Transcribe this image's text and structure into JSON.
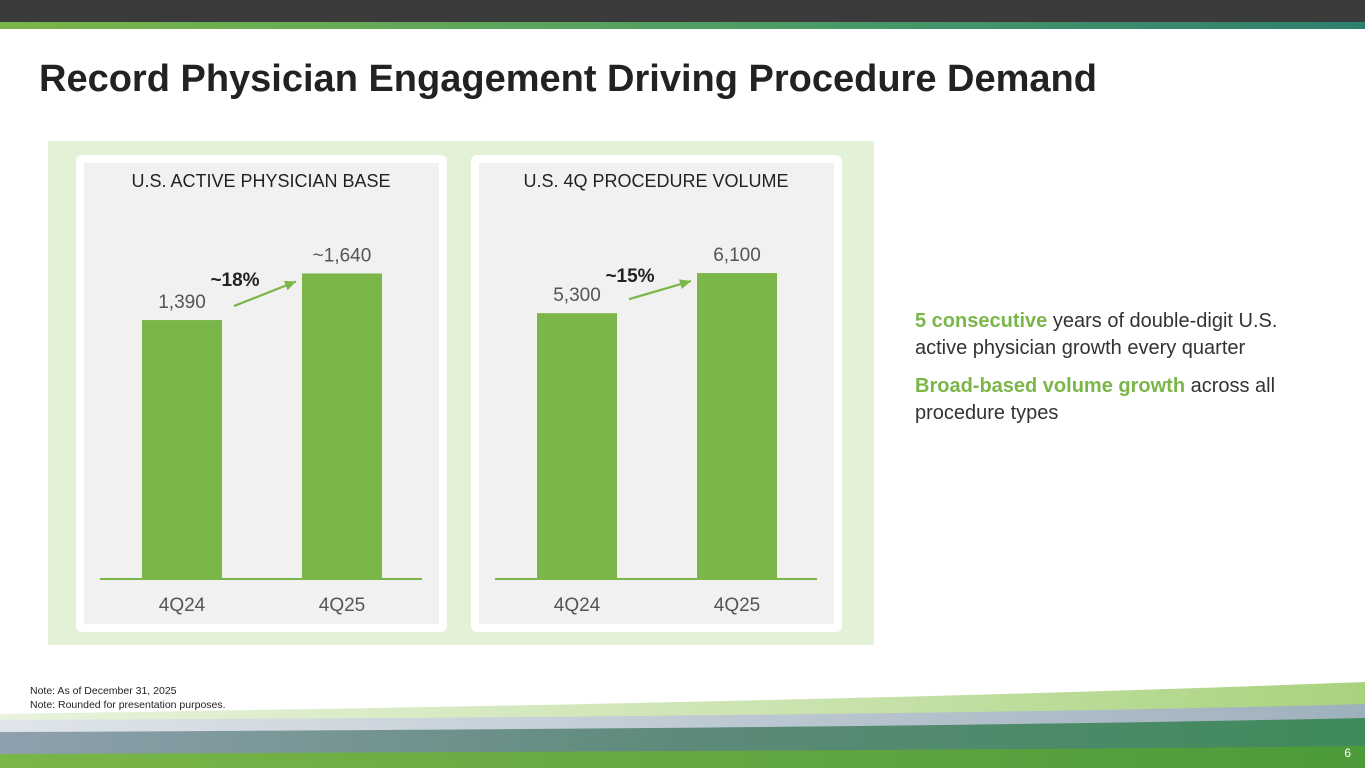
{
  "slide": {
    "title": "Record Physician Engagement Driving Procedure Demand",
    "page_number": "6"
  },
  "colors": {
    "accent_green": "#7ab648",
    "top_bar": "#3b3b3b",
    "panel_bg": "#e3f2d7"
  },
  "chart_data": [
    {
      "type": "bar",
      "title": "U.S. ACTIVE PHYSICIAN BASE",
      "categories": [
        "4Q24",
        "4Q25"
      ],
      "values": [
        1390,
        1640
      ],
      "labels": [
        "1,390",
        "~1,640"
      ],
      "growth_label": "~18%",
      "ylim": [
        0,
        1750
      ]
    },
    {
      "type": "bar",
      "title": "U.S. 4Q PROCEDURE VOLUME",
      "categories": [
        "4Q24",
        "4Q25"
      ],
      "values": [
        5300,
        6100
      ],
      "labels": [
        "5,300",
        "6,100"
      ],
      "growth_label": "~15%",
      "ylim": [
        0,
        6500
      ]
    }
  ],
  "bullets": [
    {
      "highlight": "5 consecutive",
      "text": " years of double-digit U.S. active physician growth every quarter"
    },
    {
      "highlight": "Broad-based volume growth",
      "text": " across all procedure types"
    }
  ],
  "notes": [
    "Note: As of December 31, 2025",
    "Note: Rounded for presentation purposes."
  ]
}
